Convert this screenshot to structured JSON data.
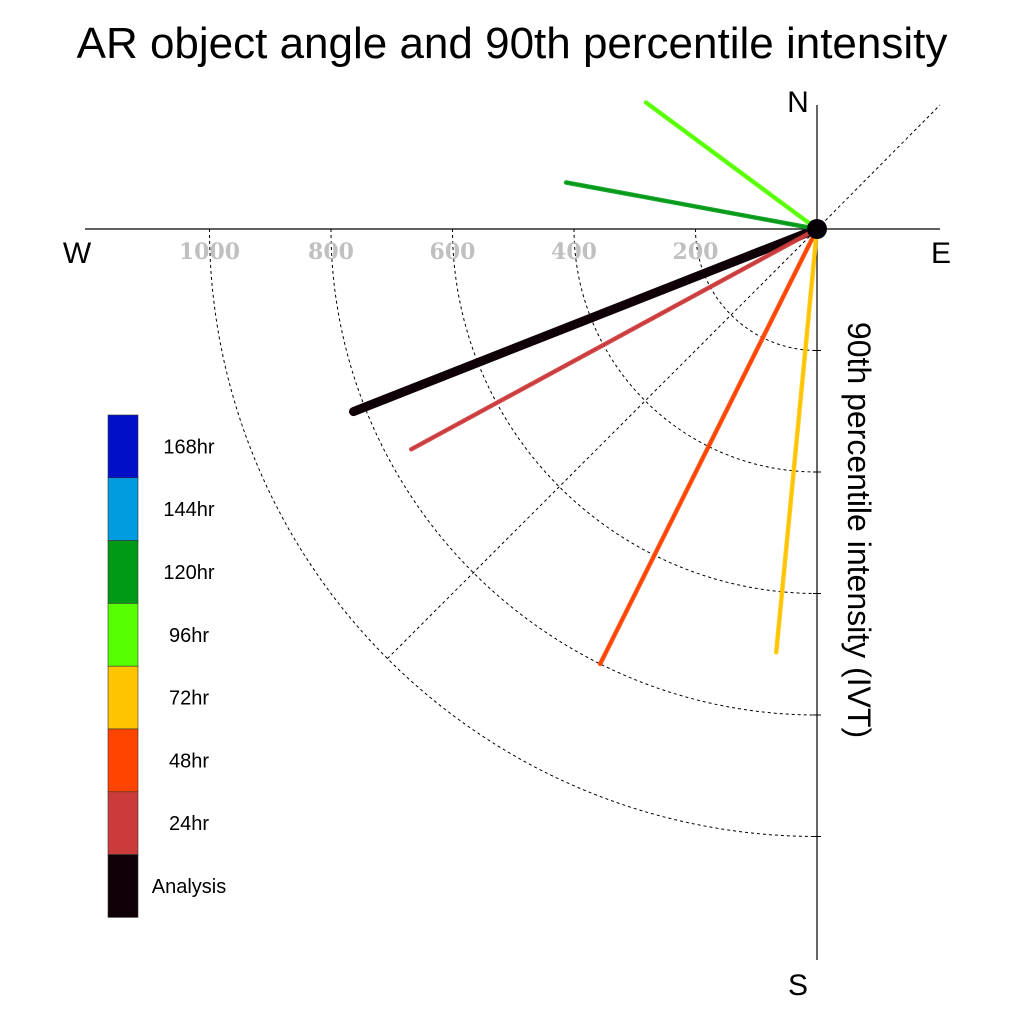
{
  "chart_data": {
    "type": "polar-vector",
    "title": "AR object angle and 90th percentile intensity",
    "radial_axis_label": "90th percentile intensity (IVT)",
    "cardinal_labels": {
      "north": "N",
      "east": "E",
      "south": "S",
      "west": "W"
    },
    "radial_ticks": [
      200,
      400,
      600,
      800,
      1000
    ],
    "radial_range": [
      0,
      1200
    ],
    "angle_reference": "degrees counter-clockwise from East",
    "series": [
      {
        "name": "Analysis",
        "color": "#0f0008",
        "angle_deg": 201.5,
        "intensity": 820
      },
      {
        "name": "24hr",
        "color": "#cc3b3b",
        "angle_deg": 208.5,
        "intensity": 760
      },
      {
        "name": "48hr",
        "color": "#ff4400",
        "angle_deg": 243.5,
        "intensity": 800
      },
      {
        "name": "72hr",
        "color": "#ffc400",
        "angle_deg": 264.5,
        "intensity": 700
      },
      {
        "name": "96hr",
        "color": "#55ff00",
        "angle_deg": 143.5,
        "intensity": 350
      },
      {
        "name": "120hr",
        "color": "#009a16",
        "angle_deg": 169.5,
        "intensity": 420
      }
    ],
    "legend": [
      {
        "label": "168hr",
        "color": "#0010c8"
      },
      {
        "label": "144hr",
        "color": "#009ce0"
      },
      {
        "label": "120hr",
        "color": "#009a16"
      },
      {
        "label": "96hr",
        "color": "#55ff00"
      },
      {
        "label": "72hr",
        "color": "#ffc400"
      },
      {
        "label": "48hr",
        "color": "#ff4400"
      },
      {
        "label": "24hr",
        "color": "#cc3b3b"
      },
      {
        "label": "Analysis",
        "color": "#0f0008"
      }
    ]
  }
}
